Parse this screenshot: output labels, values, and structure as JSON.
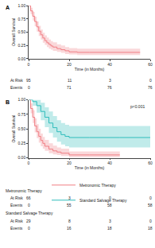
{
  "chart_data": [
    {
      "type": "line",
      "panel": "A",
      "x_label": "Time (in Months)",
      "y_label": "Overall Survival",
      "xlim": [
        0,
        60
      ],
      "xticks": [
        0,
        20,
        40,
        60
      ],
      "ylim": [
        0,
        1
      ],
      "yticks": [
        {
          "value": 0,
          "label": "0.00"
        },
        {
          "value": 0.25,
          "label": "0.25"
        },
        {
          "value": 0.5,
          "label": "0.50"
        },
        {
          "value": 0.75,
          "label": "0.75"
        },
        {
          "value": 1,
          "label": "1.00"
        }
      ],
      "line_style": "step",
      "series": [
        {
          "color": "#F07E84",
          "x": [
            0,
            1,
            2,
            3,
            4,
            5,
            6,
            7,
            8,
            9,
            10,
            11,
            12,
            14,
            16,
            18,
            20,
            24,
            30,
            40,
            55
          ],
          "values": [
            1,
            0.9,
            0.8,
            0.7,
            0.6,
            0.52,
            0.45,
            0.39,
            0.34,
            0.3,
            0.27,
            0.24,
            0.22,
            0.19,
            0.17,
            0.15,
            0.13,
            0.12,
            0.12,
            0.12,
            0.12
          ],
          "upper": [
            1,
            0.96,
            0.88,
            0.79,
            0.7,
            0.62,
            0.55,
            0.49,
            0.44,
            0.4,
            0.36,
            0.33,
            0.31,
            0.27,
            0.25,
            0.22,
            0.2,
            0.19,
            0.19,
            0.19,
            0.19
          ],
          "lower": [
            1,
            0.84,
            0.72,
            0.61,
            0.51,
            0.43,
            0.36,
            0.3,
            0.26,
            0.22,
            0.19,
            0.17,
            0.15,
            0.13,
            0.11,
            0.09,
            0.08,
            0.07,
            0.07,
            0.07,
            0.07
          ]
        }
      ],
      "risk_table": {
        "times": [
          0,
          20,
          40,
          60
        ],
        "row_labels": [
          "At Risk",
          "Events"
        ],
        "groups": [
          {
            "at_risk": [
              95,
              11,
              3,
              0
            ],
            "events": [
              0,
              71,
              76,
              76
            ]
          }
        ]
      }
    },
    {
      "type": "line",
      "panel": "B",
      "x_label": "Time (in Months)",
      "y_label": "Overall Survival",
      "xlim": [
        0,
        60
      ],
      "xticks": [
        0,
        20,
        40,
        60
      ],
      "ylim": [
        0,
        1
      ],
      "yticks": [
        {
          "value": 0,
          "label": "0.00"
        },
        {
          "value": 0.25,
          "label": "0.25"
        },
        {
          "value": 0.5,
          "label": "0.50"
        },
        {
          "value": 0.75,
          "label": "0.75"
        },
        {
          "value": 1,
          "label": "1.00"
        }
      ],
      "line_style": "step",
      "legend": "bottom",
      "annotations": [
        "p<0.001"
      ],
      "series": [
        {
          "name": "Metronomic Therapy",
          "color": "#F07E84",
          "x": [
            0,
            1,
            2,
            3,
            4,
            5,
            6,
            7,
            8,
            10,
            12,
            14,
            16,
            20,
            30,
            45
          ],
          "values": [
            1,
            0.85,
            0.7,
            0.55,
            0.45,
            0.37,
            0.3,
            0.25,
            0.2,
            0.15,
            0.12,
            0.1,
            0.08,
            0.05,
            0.05,
            0.05
          ],
          "upper": [
            1,
            0.94,
            0.82,
            0.68,
            0.58,
            0.5,
            0.42,
            0.36,
            0.31,
            0.25,
            0.21,
            0.18,
            0.16,
            0.11,
            0.11,
            0.11
          ],
          "lower": [
            1,
            0.77,
            0.6,
            0.44,
            0.34,
            0.26,
            0.2,
            0.16,
            0.12,
            0.08,
            0.06,
            0.05,
            0.03,
            0.01,
            0.01,
            0.01
          ]
        },
        {
          "name": "Standard Salvage Therapy",
          "color": "#2EBCBB",
          "x": [
            0,
            2,
            4,
            6,
            8,
            10,
            12,
            14,
            16,
            18,
            20,
            30,
            45,
            60
          ],
          "values": [
            1,
            0.97,
            0.9,
            0.8,
            0.7,
            0.6,
            0.52,
            0.45,
            0.4,
            0.37,
            0.35,
            0.35,
            0.35,
            0.35
          ],
          "upper": [
            1,
            1,
            1,
            0.95,
            0.87,
            0.8,
            0.72,
            0.65,
            0.6,
            0.57,
            0.55,
            0.55,
            0.55,
            0.55
          ],
          "lower": [
            1,
            0.9,
            0.78,
            0.65,
            0.53,
            0.43,
            0.35,
            0.28,
            0.23,
            0.2,
            0.18,
            0.18,
            0.18,
            0.18
          ]
        }
      ],
      "risk_table": {
        "times": [
          0,
          20,
          40,
          60
        ],
        "row_labels": [
          "At Risk",
          "Events"
        ],
        "groups": [
          {
            "group": "Metronomic Therapy",
            "at_risk": [
              66,
              3,
              0,
              0
            ],
            "events": [
              0,
              55,
              58,
              58
            ]
          },
          {
            "group": "Standard Salvage Therapy",
            "at_risk": [
              29,
              8,
              3,
              0
            ],
            "events": [
              0,
              16,
              18,
              18
            ]
          }
        ]
      }
    }
  ]
}
